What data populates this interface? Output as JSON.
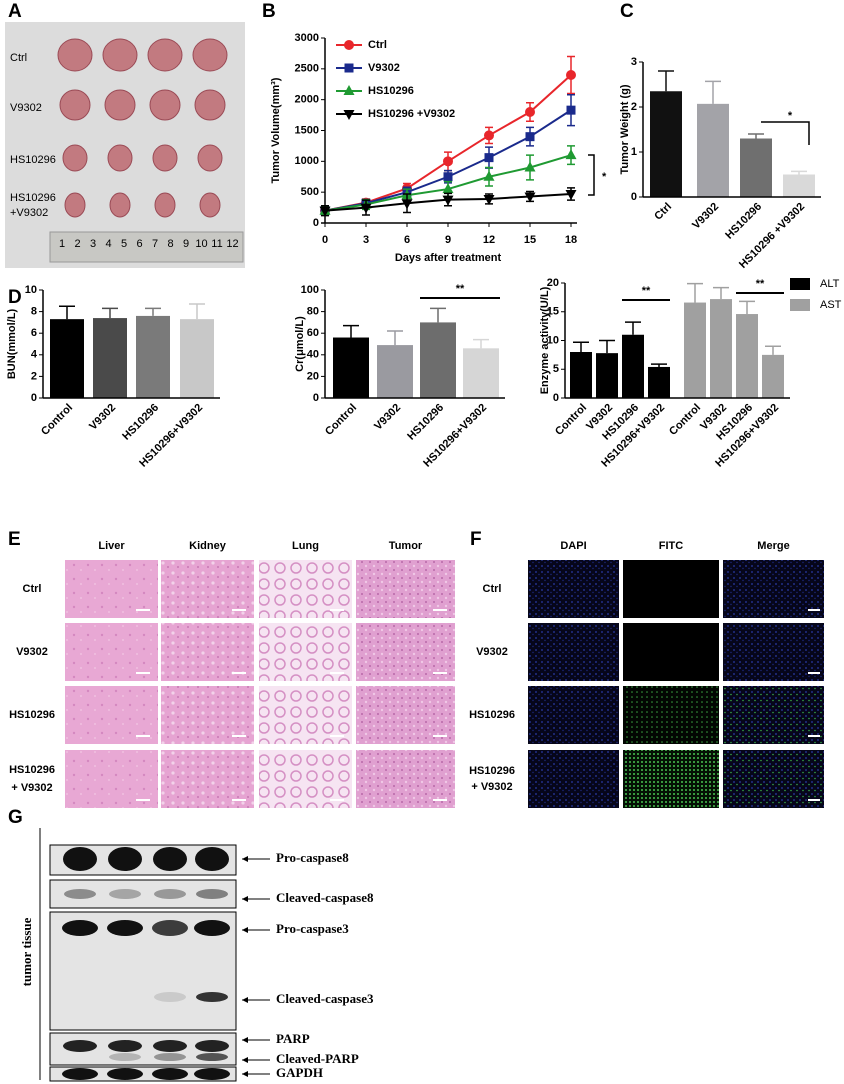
{
  "panel_labels": [
    "A",
    "B",
    "C",
    "D",
    "E",
    "F",
    "G"
  ],
  "photo": {
    "rows": [
      [
        "Ctrl"
      ],
      [
        "V9302"
      ],
      [
        "HS10296"
      ],
      [
        "HS10296",
        "+V9302"
      ]
    ],
    "ruler": [
      "1",
      "2",
      "3",
      "4",
      "5",
      "6",
      "7",
      "8",
      "9",
      "10",
      "11",
      "12"
    ]
  },
  "chart_data": [
    {
      "type": "line",
      "x": [
        0,
        3,
        6,
        9,
        12,
        15,
        18
      ],
      "xlim": [
        0,
        18
      ],
      "xticks": [
        0,
        3,
        6,
        9,
        12,
        15,
        18
      ],
      "ylim": [
        0,
        3000
      ],
      "yticks": [
        0,
        500,
        1000,
        1500,
        2000,
        2500,
        3000
      ],
      "x_label": "Days after treatment",
      "y_label": "Tumor Volume(mm³)",
      "annotations": [
        "*"
      ],
      "series": [
        {
          "name": "Ctrl",
          "color": "#e8262b",
          "marker": "circle",
          "values": [
            200,
            330,
            560,
            1000,
            1420,
            1800,
            2400
          ],
          "errors": [
            50,
            60,
            80,
            150,
            130,
            150,
            300
          ]
        },
        {
          "name": "V9302",
          "color": "#1a2a8c",
          "marker": "square",
          "values": [
            200,
            320,
            500,
            750,
            1060,
            1400,
            1830
          ],
          "errors": [
            50,
            60,
            80,
            100,
            170,
            150,
            250
          ]
        },
        {
          "name": "HS10296",
          "color": "#1f9a32",
          "marker": "triangle-up",
          "values": [
            200,
            300,
            450,
            550,
            750,
            900,
            1100
          ],
          "errors": [
            60,
            80,
            100,
            120,
            150,
            200,
            150
          ]
        },
        {
          "name": "HS10296 +V9302",
          "color": "#000000",
          "marker": "triangle-down",
          "values": [
            200,
            250,
            320,
            380,
            390,
            430,
            470
          ],
          "errors": [
            80,
            120,
            150,
            100,
            80,
            80,
            100
          ]
        }
      ]
    },
    {
      "type": "bar",
      "categories": [
        "Ctrl",
        "V9302",
        "HS10296",
        "HS10296 +V9302"
      ],
      "values": [
        2.35,
        2.07,
        1.3,
        0.5
      ],
      "errors": [
        0.45,
        0.5,
        0.1,
        0.07
      ],
      "colors": [
        "#111111",
        "#a3a3a8",
        "#6f6f6f",
        "#d9d9d9"
      ],
      "ylim": [
        0,
        3
      ],
      "yticks": [
        0,
        1,
        2,
        3
      ],
      "y_label": "Tumor Weight (g)",
      "annotations": [
        "*"
      ]
    },
    {
      "type": "bar",
      "categories": [
        "Control",
        "V9302",
        "HS10296",
        "HS10296+V9302"
      ],
      "values": [
        7.3,
        7.4,
        7.6,
        7.3
      ],
      "errors": [
        1.2,
        0.9,
        0.7,
        1.4
      ],
      "colors": [
        "#000000",
        "#4a4a4a",
        "#7a7a7a",
        "#c8c8c8"
      ],
      "ylim": [
        0,
        10
      ],
      "yticks": [
        0,
        2,
        4,
        6,
        8,
        10
      ],
      "y_label": "BUN(mmol/L)",
      "annotations": []
    },
    {
      "type": "bar",
      "categories": [
        "Control",
        "V9302",
        "HS10296",
        "HS10296+V9302"
      ],
      "values": [
        56,
        49,
        70,
        46
      ],
      "errors": [
        11,
        13,
        13,
        8
      ],
      "colors": [
        "#000000",
        "#9a9aa0",
        "#6d6d6d",
        "#d6d6d6"
      ],
      "ylim": [
        0,
        100
      ],
      "yticks": [
        0,
        20,
        40,
        60,
        80,
        100
      ],
      "y_label": "Cr(μmol/L)",
      "annotations": [
        "**"
      ]
    },
    {
      "type": "grouped-bar",
      "categories": [
        "Control",
        "V9302",
        "HS10296",
        "HS10296+V9302"
      ],
      "ylim": [
        0,
        20
      ],
      "yticks": [
        0,
        5,
        10,
        15,
        20
      ],
      "y_label": "Enzyme activity(U/L)",
      "annotations": [
        "**",
        "**"
      ],
      "series": [
        {
          "name": "ALT",
          "color": "#000000",
          "values": [
            8,
            7.8,
            11,
            5.4
          ],
          "errors": [
            1.7,
            2.2,
            2.2,
            0.5
          ]
        },
        {
          "name": "AST",
          "color": "#a0a0a0",
          "values": [
            16.6,
            17.2,
            14.6,
            7.5
          ],
          "errors": [
            3.3,
            2,
            2.2,
            1.5
          ]
        }
      ]
    }
  ],
  "histology": {
    "columns": [
      "Liver",
      "Kidney",
      "Lung",
      "Tumor"
    ],
    "rows": [
      [
        "Ctrl"
      ],
      [
        "V9302"
      ],
      [
        "HS10296"
      ],
      [
        "HS10296",
        "+ V9302"
      ]
    ]
  },
  "fluorescence": {
    "columns": [
      "DAPI",
      "FITC",
      "Merge"
    ],
    "rows": [
      [
        "Ctrl"
      ],
      [
        "V9302"
      ],
      [
        "HS10296"
      ],
      [
        "HS10296",
        "+ V9302"
      ]
    ]
  },
  "western_blot": {
    "side_label": "tumor tissue",
    "bands": [
      "Pro-caspase8",
      "Cleaved-caspase8",
      "Pro-caspase3",
      "Cleaved-caspase3",
      "PARP",
      "Cleaved-PARP",
      "GAPDH"
    ]
  }
}
